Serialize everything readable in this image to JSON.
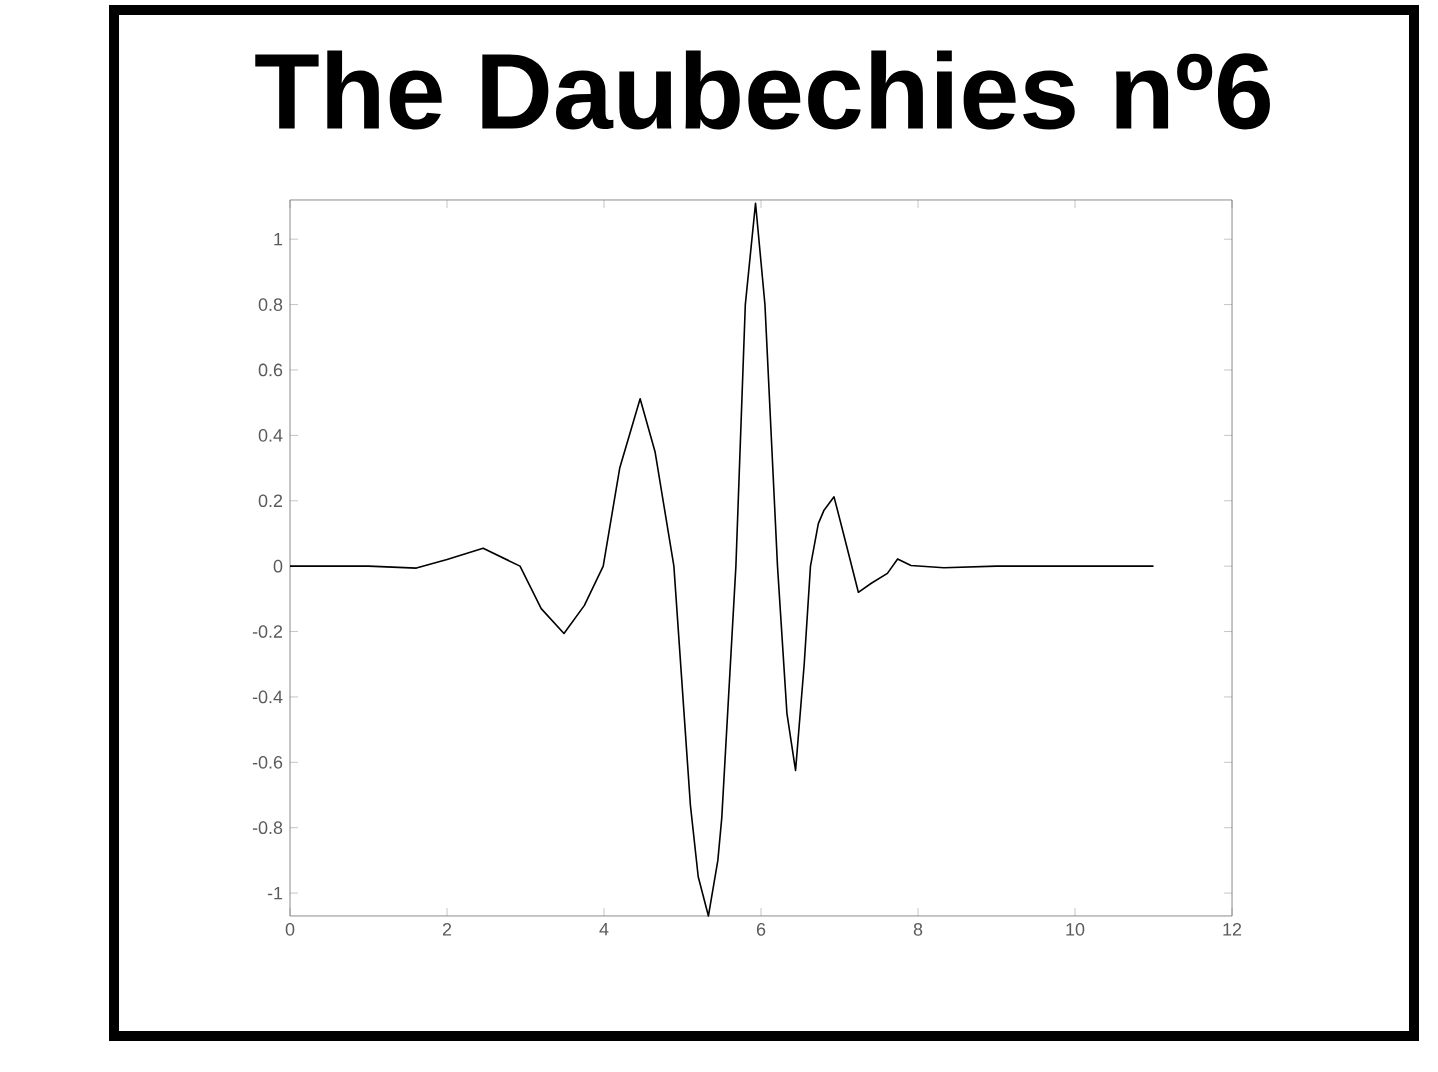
{
  "chart_data": {
    "type": "line",
    "title": "The Daubechies nº6",
    "x": [
      0,
      1,
      1.61,
      2.0,
      2.46,
      2.93,
      3.2,
      3.49,
      3.75,
      3.99,
      4.2,
      4.46,
      4.65,
      4.89,
      5.1,
      5.2,
      5.33,
      5.45,
      5.5,
      5.68,
      5.8,
      5.93,
      6.05,
      6.21,
      6.33,
      6.44,
      6.55,
      6.63,
      6.73,
      6.8,
      6.93,
      7.05,
      7.24,
      7.4,
      7.61,
      7.74,
      7.91,
      8.33,
      9,
      11
    ],
    "values": [
      0,
      0,
      -0.006,
      0.02,
      0.055,
      0,
      -0.13,
      -0.206,
      -0.12,
      0,
      0.3,
      0.512,
      0.35,
      0,
      -0.73,
      -0.95,
      -1.07,
      -0.9,
      -0.77,
      0,
      0.8,
      1.11,
      0.8,
      0,
      -0.45,
      -0.625,
      -0.3,
      0,
      0.13,
      0.17,
      0.212,
      0.1,
      -0.08,
      -0.053,
      -0.022,
      0.022,
      0.002,
      -0.005,
      0,
      0
    ],
    "color": "#000000",
    "xlim": [
      0,
      12
    ],
    "ylim": [
      -1.07,
      1.12
    ],
    "xticks": [
      0,
      2,
      4,
      6,
      8,
      10,
      12
    ],
    "yticks": [
      -1,
      -0.8,
      -0.6,
      -0.4,
      -0.2,
      0,
      0.2,
      0.4,
      0.6,
      0.8,
      1
    ]
  }
}
